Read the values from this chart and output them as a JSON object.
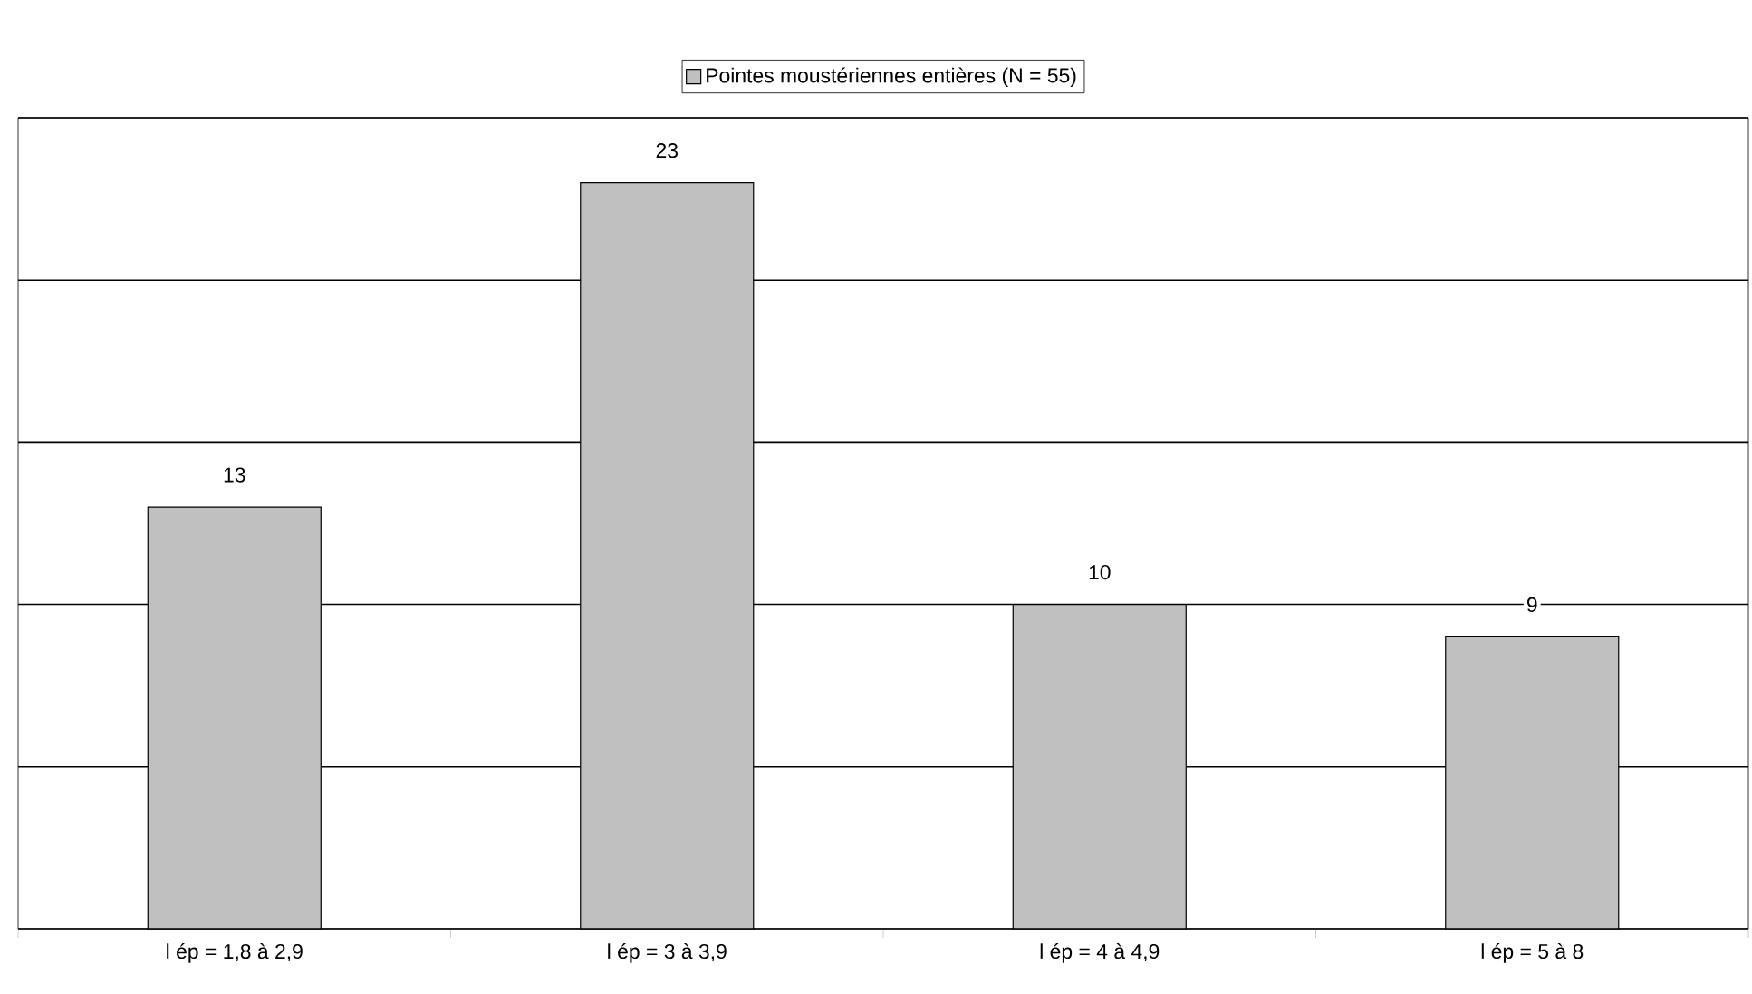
{
  "chart_data": {
    "type": "bar",
    "categories": [
      "l ép = 1,8 à 2,9",
      "l ép = 3 à 3,9",
      "l ép = 4 à 4,9",
      "l ép = 5 à 8"
    ],
    "series": [
      {
        "name": "Pointes moustériennes entières (N = 55)",
        "color": "#c0c0c0",
        "values": [
          13,
          23,
          10,
          9
        ]
      }
    ],
    "ylim": [
      0,
      25
    ],
    "yticks": [
      {
        "value": 0,
        "label": null
      },
      {
        "value": 5,
        "label": null
      },
      {
        "value": 10,
        "label": null
      },
      {
        "value": 15,
        "label": null
      },
      {
        "value": 20,
        "label": null
      },
      {
        "value": 25,
        "label": null
      }
    ],
    "tick_labels": "x",
    "grid": "y",
    "legend": "top",
    "data_labels": true
  }
}
